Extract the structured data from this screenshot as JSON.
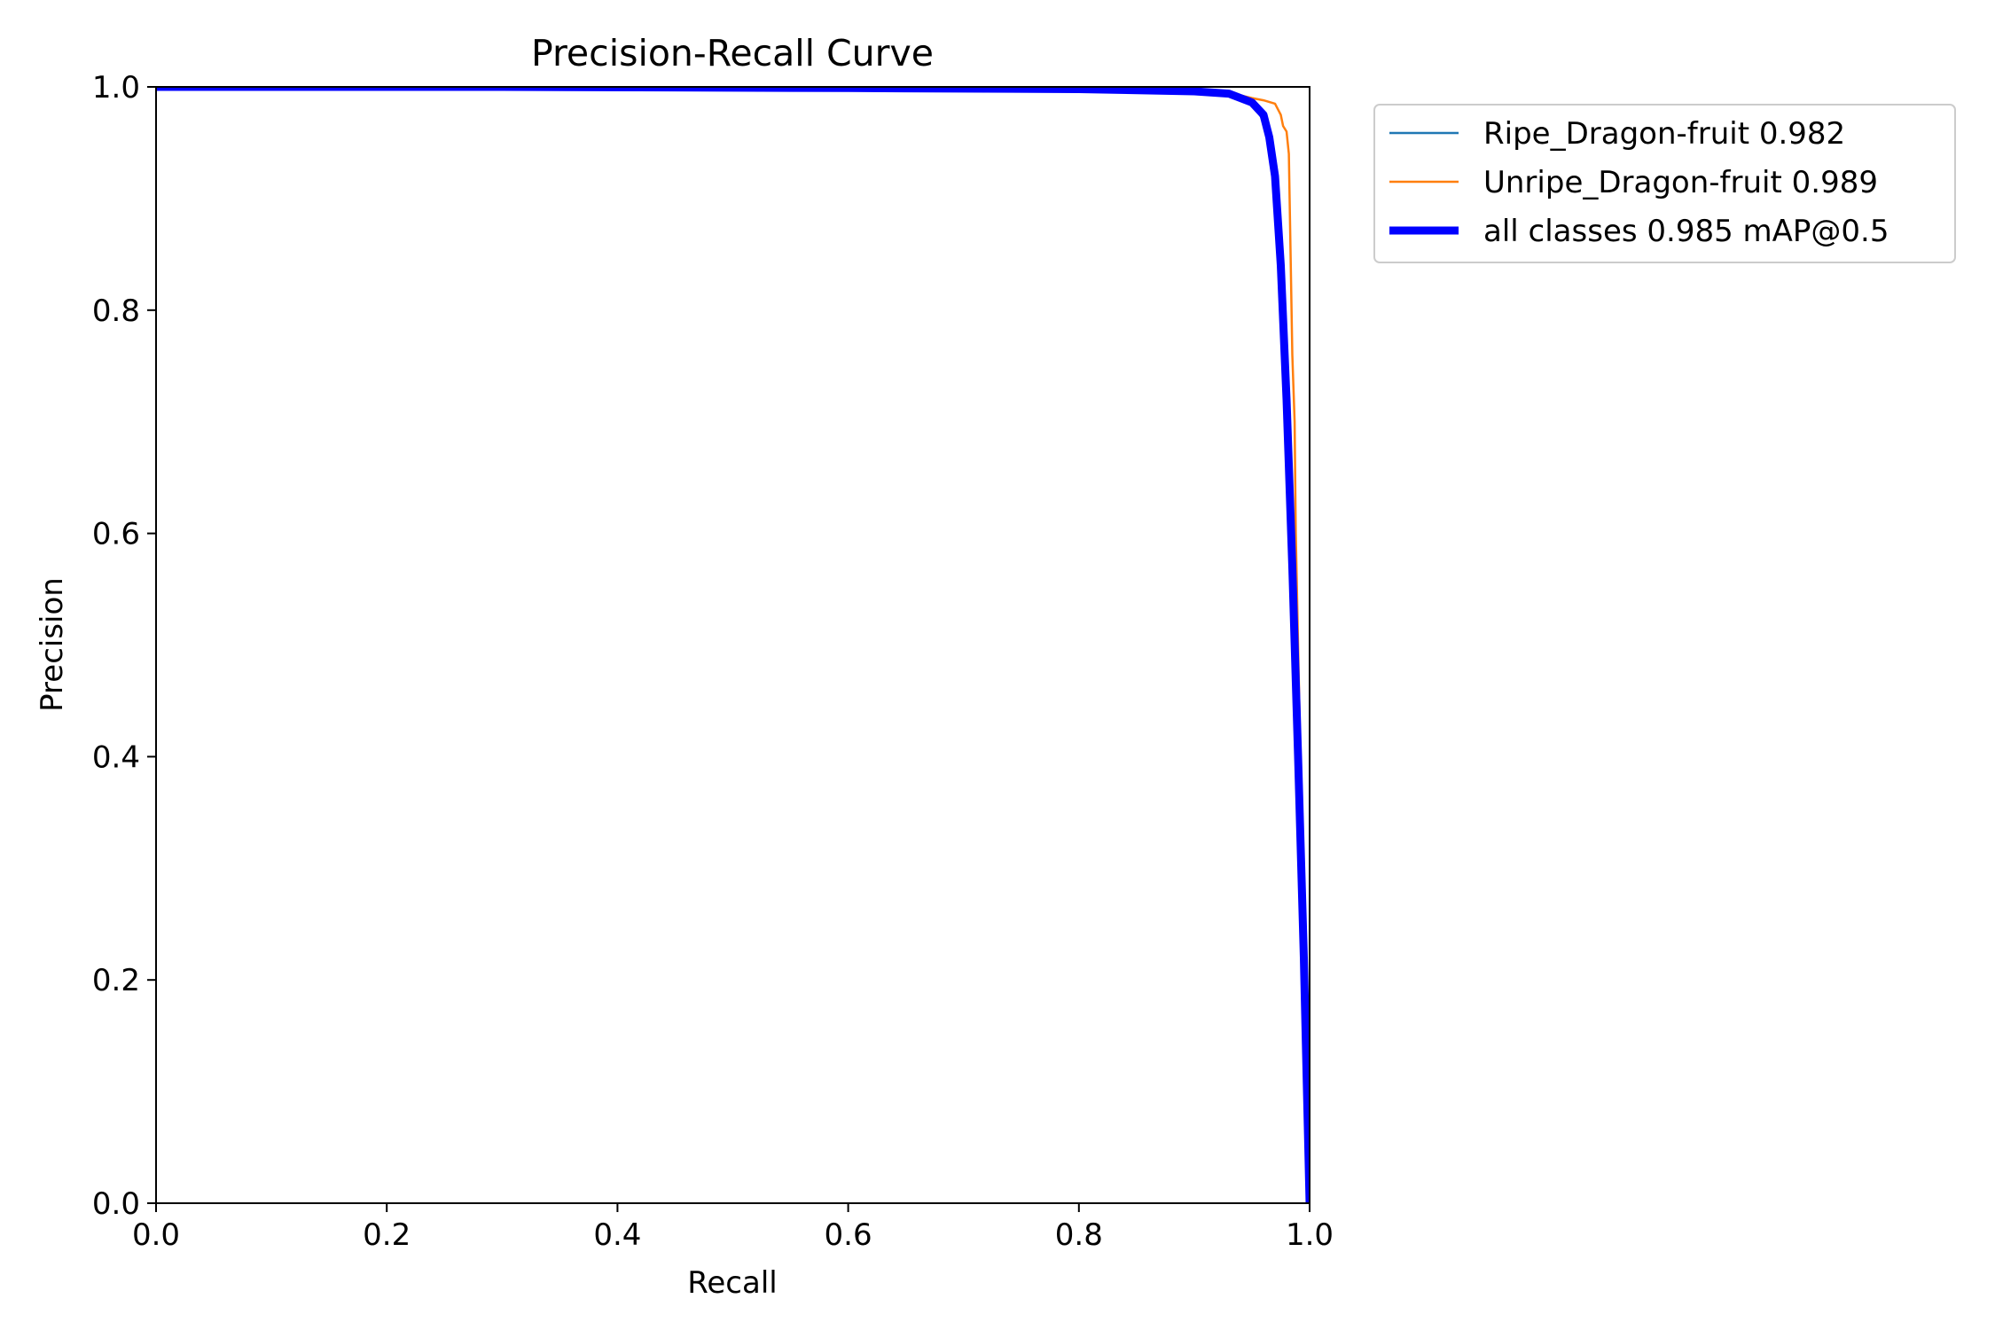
{
  "chart_data": {
    "type": "line",
    "title": "Precision-Recall Curve",
    "xlabel": "Recall",
    "ylabel": "Precision",
    "xlim": [
      0.0,
      1.0
    ],
    "ylim": [
      0.0,
      1.0
    ],
    "xticks": [
      "0.0",
      "0.2",
      "0.4",
      "0.6",
      "0.8",
      "1.0"
    ],
    "yticks": [
      "0.0",
      "0.2",
      "0.4",
      "0.6",
      "0.8",
      "1.0"
    ],
    "grid": false,
    "legend": "outside upper-right",
    "series": [
      {
        "name": "Ripe_Dragon-fruit 0.982",
        "color": "#1f77b4",
        "x": [
          0.0,
          0.3,
          0.6,
          0.8,
          0.9,
          0.93,
          0.95,
          0.96,
          0.965,
          0.97,
          0.975,
          0.98,
          0.985,
          0.99,
          0.995,
          1.0
        ],
        "y": [
          1.0,
          1.0,
          0.999,
          0.998,
          0.996,
          0.993,
          0.985,
          0.97,
          0.945,
          0.9,
          0.8,
          0.68,
          0.5,
          0.35,
          0.2,
          0.0
        ]
      },
      {
        "name": "Unripe_Dragon-fruit 0.989",
        "color": "#ff7f0e",
        "x": [
          0.0,
          0.3,
          0.6,
          0.8,
          0.9,
          0.93,
          0.95,
          0.96,
          0.97,
          0.975,
          0.977,
          0.98,
          0.982,
          0.983,
          0.985,
          0.987,
          0.988,
          0.99,
          0.995,
          1.0
        ],
        "y": [
          1.0,
          1.0,
          0.999,
          0.998,
          0.997,
          0.995,
          0.99,
          0.988,
          0.985,
          0.975,
          0.965,
          0.96,
          0.94,
          0.88,
          0.76,
          0.7,
          0.6,
          0.5,
          0.25,
          0.0
        ]
      },
      {
        "name": "all classes 0.985 mAP@0.5",
        "color": "#0000ff",
        "x": [
          0.0,
          0.3,
          0.6,
          0.8,
          0.9,
          0.93,
          0.95,
          0.96,
          0.965,
          0.97,
          0.975,
          0.98,
          0.985,
          0.99,
          0.995,
          1.0
        ],
        "y": [
          1.0,
          1.0,
          0.999,
          0.998,
          0.996,
          0.994,
          0.986,
          0.975,
          0.955,
          0.92,
          0.84,
          0.72,
          0.57,
          0.4,
          0.22,
          0.0
        ]
      }
    ]
  }
}
